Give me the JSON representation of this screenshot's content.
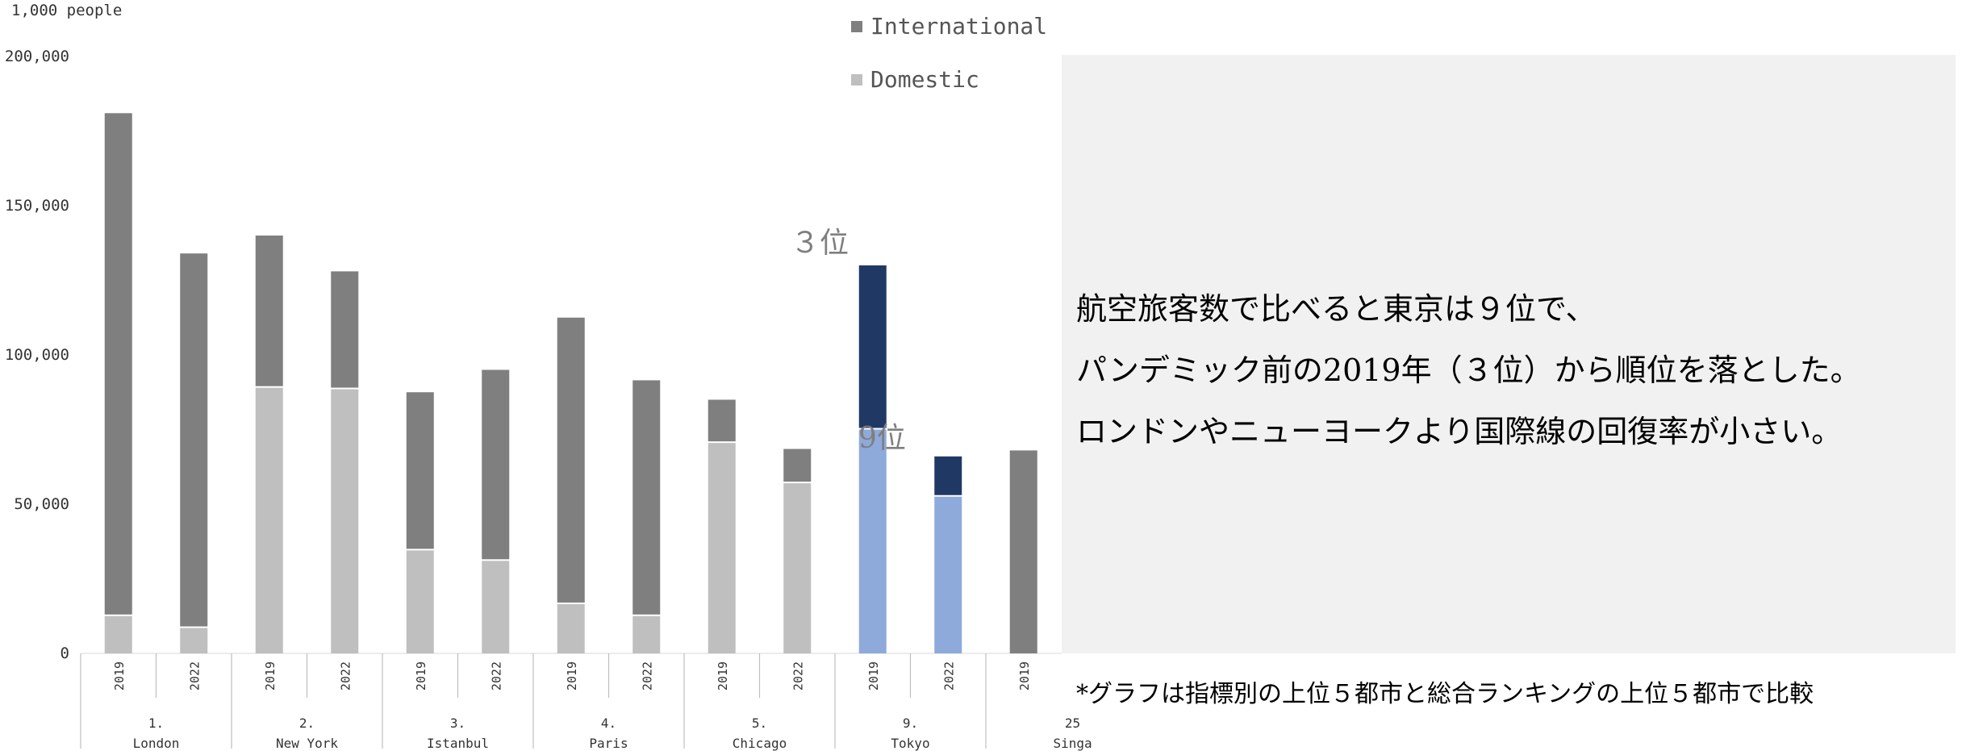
{
  "chart_data": {
    "type": "bar",
    "stacked": true,
    "unit": "1,000 people",
    "ylim": [
      0,
      200000
    ],
    "yticks": [
      0,
      50000,
      100000,
      150000,
      200000
    ],
    "ytick_labels": [
      "0",
      "50,000",
      "100,000",
      "150,000",
      "200,000"
    ],
    "groups": [
      {
        "rank": "1.",
        "city": "London",
        "years": [
          "2019",
          "2022"
        ]
      },
      {
        "rank": "2.",
        "city": "New York",
        "years": [
          "2019",
          "2022"
        ]
      },
      {
        "rank": "3.",
        "city": "Istanbul",
        "years": [
          "2019",
          "2022"
        ]
      },
      {
        "rank": "4.",
        "city": "Paris",
        "years": [
          "2019",
          "2022"
        ]
      },
      {
        "rank": "5.",
        "city": "Chicago",
        "years": [
          "2019",
          "2022"
        ]
      },
      {
        "rank": "9.",
        "city": "Tokyo",
        "years": [
          "2019",
          "2022"
        ],
        "highlight": true
      },
      {
        "rank": "25",
        "city": "Singa",
        "years": [
          "2019"
        ]
      }
    ],
    "series": [
      {
        "name": "Domestic",
        "values": [
          12500,
          8500,
          89000,
          88500,
          34500,
          31000,
          16500,
          12500,
          70500,
          57000,
          75000,
          52500,
          0
        ]
      },
      {
        "name": "International",
        "values": [
          168500,
          125500,
          51000,
          39500,
          53000,
          64000,
          96000,
          79000,
          14500,
          11500,
          55000,
          13500,
          68000
        ]
      }
    ],
    "colors": {
      "Domestic": "#bfbfbf",
      "International": "#7f7f7f",
      "Domestic_highlight": "#8eaadb",
      "International_highlight": "#203864"
    },
    "annotations": [
      "３位",
      "9位"
    ],
    "legend": "top-center",
    "grid": false
  },
  "legend": {
    "international": "International",
    "domestic": "Domestic"
  },
  "message": {
    "line1": "航空旅客数で比べると東京は９位で、",
    "line2": "パンデミック前の2019年（３位）から順位を落とした。",
    "line3": "ロンドンやニューヨークより国際線の回復率が小さい。"
  },
  "footnote": "*グラフは指標別の上位５都市と総合ランキングの上位５都市で比較"
}
